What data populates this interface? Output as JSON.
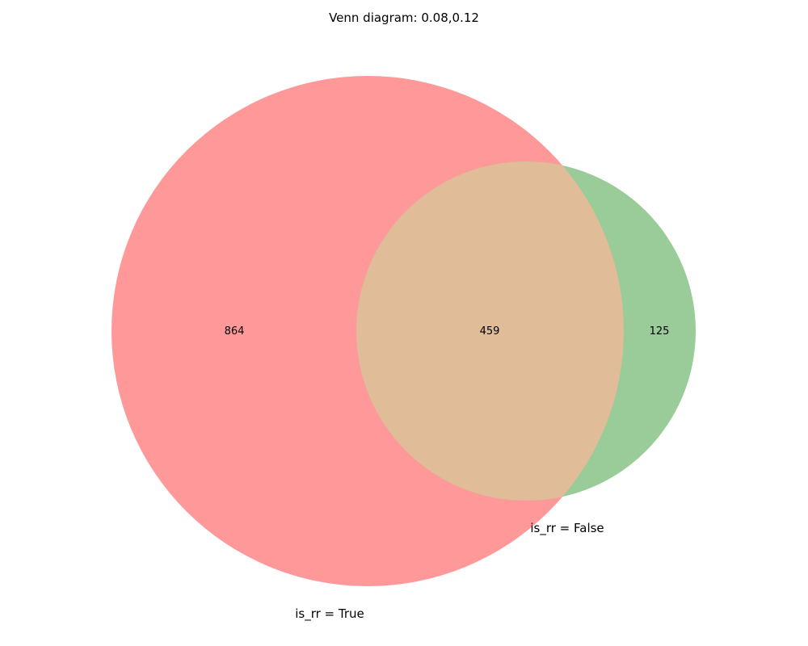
{
  "diagram": {
    "title": "Venn diagram: 0.08,0.12",
    "sets": [
      {
        "label": "is_rr = True",
        "color": "#ff9999"
      },
      {
        "label": "is_rr = False",
        "color": "#99cc99"
      }
    ],
    "overlap_color": "#e0bc98",
    "regions": {
      "only_true": "864",
      "both": "459",
      "only_false": "125"
    }
  }
}
